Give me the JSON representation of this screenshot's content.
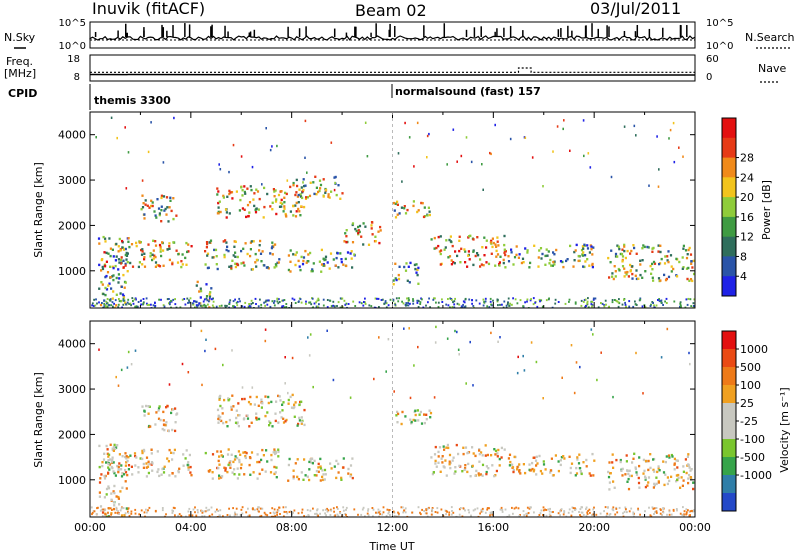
{
  "header": {
    "station": "Inuvik (fitACF)",
    "beam": "Beam 02",
    "date": "03/Jul/2011"
  },
  "side_labels": {
    "nsky": "N.Sky",
    "nsearch": "N.Search",
    "freq": "Freq.",
    "freq_unit": "[MHz]",
    "nave": "Nave",
    "cpid": "CPID"
  },
  "cpid_labels": {
    "first": "themis 3300",
    "second": "normalsound (fast) 157"
  },
  "chart_data": [
    {
      "type": "line",
      "name": "noise_panel",
      "series": [
        {
          "name": "N.Sky"
        },
        {
          "name": "N.Search"
        }
      ],
      "ylim": [
        1,
        100000
      ],
      "yscale": "log",
      "left_ticks": [
        "10^5",
        "10^0"
      ],
      "right_ticks": [
        "10^5",
        "10^0"
      ]
    },
    {
      "type": "line",
      "name": "freq_nave_panel",
      "series": [
        {
          "name": "Freq.",
          "x": [
            0,
            12,
            13,
            16.5,
            17.5,
            20,
            24
          ],
          "values": [
            10.5,
            10.3,
            10.3,
            10.3,
            10.3,
            10.3,
            10.3
          ]
        },
        {
          "name": "Nave",
          "x": [
            0,
            12,
            16.5,
            17,
            17.5,
            18,
            21,
            24
          ],
          "values": [
            20,
            20,
            20,
            30,
            20,
            20,
            20,
            20
          ]
        }
      ],
      "left_ylim": [
        8,
        18
      ],
      "right_ylim": [
        0,
        60
      ],
      "left_ticks": [
        "18",
        "8"
      ],
      "right_ticks": [
        "60",
        "0"
      ]
    },
    {
      "type": "heatmap",
      "name": "power",
      "ylabel": "Slant Range [km]",
      "xlabel": "Time UT",
      "xlim": [
        0,
        24
      ],
      "ylim": [
        180,
        4500
      ],
      "y_ticks": [
        "1000",
        "2000",
        "3000",
        "4000"
      ],
      "colorbar_label": "Power [dB]",
      "colorbar_ticks": [
        "4",
        "8",
        "12",
        "16",
        "20",
        "24",
        "28"
      ],
      "colorbar_colors": [
        "#1f22e6",
        "#2a54a8",
        "#2f6e5c",
        "#3f9b42",
        "#8fcc3a",
        "#f2c41d",
        "#f08a1a",
        "#e63a16",
        "#e31010"
      ],
      "echo_bands": [
        {
          "t0": 0.3,
          "t1": 1.5,
          "r0": 200,
          "r1": 1800
        },
        {
          "t0": 2.0,
          "t1": 3.5,
          "r0": 2100,
          "r1": 2700
        },
        {
          "t0": 0.5,
          "t1": 4.0,
          "r0": 1100,
          "r1": 1700
        },
        {
          "t0": 4.0,
          "t1": 4.8,
          "r0": 200,
          "r1": 800
        },
        {
          "t0": 4.5,
          "t1": 7.5,
          "r0": 1050,
          "r1": 1700
        },
        {
          "t0": 5.0,
          "t1": 8.5,
          "r0": 2200,
          "r1": 2900
        },
        {
          "t0": 7.8,
          "t1": 10.5,
          "r0": 1000,
          "r1": 1500
        },
        {
          "t0": 8.0,
          "t1": 10.0,
          "r0": 2600,
          "r1": 3100
        },
        {
          "t0": 10.0,
          "t1": 11.5,
          "r0": 1600,
          "r1": 2100
        },
        {
          "t0": 12.0,
          "t1": 13.0,
          "r0": 700,
          "r1": 1200
        },
        {
          "t0": 12.0,
          "t1": 13.5,
          "r0": 2200,
          "r1": 2600
        },
        {
          "t0": 13.5,
          "t1": 16.5,
          "r0": 1100,
          "r1": 1800
        },
        {
          "t0": 16.5,
          "t1": 20.0,
          "r0": 1100,
          "r1": 1600
        },
        {
          "t0": 20.5,
          "t1": 24.0,
          "r0": 800,
          "r1": 1600
        }
      ]
    },
    {
      "type": "heatmap",
      "name": "velocity",
      "ylabel": "Slant Range [km]",
      "xlabel": "Time UT",
      "xlim": [
        0,
        24
      ],
      "ylim": [
        180,
        4500
      ],
      "y_ticks": [
        "1000",
        "2000",
        "3000",
        "4000"
      ],
      "x_ticks": [
        "00:00",
        "04:00",
        "08:00",
        "12:00",
        "16:00",
        "20:00",
        "00:00"
      ],
      "colorbar_label": "Velocity [m s⁻¹]",
      "colorbar_ticks": [
        "1000",
        "500",
        "100",
        "25",
        "-25",
        "-100",
        "-500",
        "-1000"
      ],
      "colorbar_colors": [
        "#2449c8",
        "#2f7ea8",
        "#36a44a",
        "#7ac62e",
        "#c8c8c0",
        "#c8c8c0",
        "#f0a020",
        "#ee7a18",
        "#ea4a14",
        "#e31010"
      ],
      "echo_bands": [
        {
          "t0": 0.3,
          "t1": 1.5,
          "r0": 200,
          "r1": 1800
        },
        {
          "t0": 2.0,
          "t1": 3.5,
          "r0": 2100,
          "r1": 2700
        },
        {
          "t0": 0.5,
          "t1": 4.0,
          "r0": 1100,
          "r1": 1700
        },
        {
          "t0": 4.5,
          "t1": 7.5,
          "r0": 1050,
          "r1": 1700
        },
        {
          "t0": 5.0,
          "t1": 8.5,
          "r0": 2200,
          "r1": 2900
        },
        {
          "t0": 7.8,
          "t1": 10.5,
          "r0": 1000,
          "r1": 1500
        },
        {
          "t0": 12.0,
          "t1": 13.5,
          "r0": 2200,
          "r1": 2600
        },
        {
          "t0": 13.5,
          "t1": 16.5,
          "r0": 1100,
          "r1": 1800
        },
        {
          "t0": 16.5,
          "t1": 20.0,
          "r0": 1100,
          "r1": 1600
        },
        {
          "t0": 20.5,
          "t1": 24.0,
          "r0": 800,
          "r1": 1600
        }
      ]
    }
  ]
}
